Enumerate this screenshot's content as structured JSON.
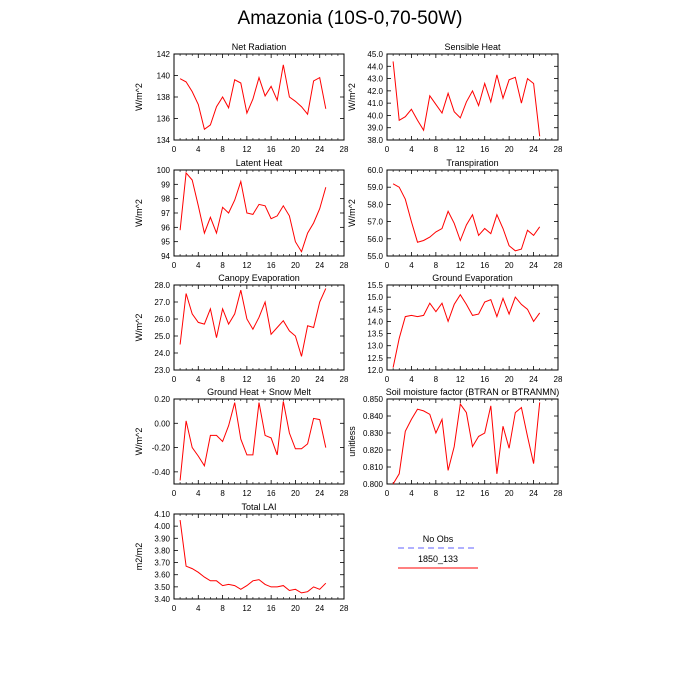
{
  "title": "Amazonia (10S-0,70-50W)",
  "legend": {
    "entries": [
      {
        "label": "No Obs",
        "color": "#8080ff",
        "dash": true
      },
      {
        "label": "1850_133",
        "color": "#ff0000",
        "dash": false
      }
    ]
  },
  "chart_data": [
    {
      "type": "line",
      "title": "Net Radiation",
      "ylabel": "W/m^2",
      "xlim": [
        0,
        28
      ],
      "xticks": [
        0,
        4,
        8,
        12,
        16,
        20,
        24,
        28
      ],
      "ylim": [
        134,
        142
      ],
      "yticks": [
        "134",
        "136",
        "138",
        "140",
        "142"
      ],
      "series": [
        {
          "color": "#ff0000",
          "x": [
            1,
            2,
            3,
            4,
            5,
            6,
            7,
            8,
            9,
            10,
            11,
            12,
            13,
            14,
            15,
            16,
            17,
            18,
            19,
            20,
            21,
            22,
            23,
            24,
            25
          ],
          "y": [
            139.7,
            139.4,
            138.5,
            137.3,
            135.0,
            135.4,
            137.1,
            138.0,
            137.0,
            139.6,
            139.3,
            136.5,
            137.8,
            139.8,
            138.1,
            139.0,
            137.7,
            141.0,
            138.0,
            137.6,
            137.1,
            136.4,
            139.5,
            139.8,
            136.9
          ]
        }
      ]
    },
    {
      "type": "line",
      "title": "Sensible Heat",
      "ylabel": "W/m^2",
      "xlim": [
        0,
        28
      ],
      "xticks": [
        0,
        4,
        8,
        12,
        16,
        20,
        24,
        28
      ],
      "ylim": [
        38.0,
        45.0
      ],
      "yticks": [
        "38.0",
        "39.0",
        "40.0",
        "41.0",
        "42.0",
        "43.0",
        "44.0",
        "45.0"
      ],
      "series": [
        {
          "color": "#ff0000",
          "x": [
            1,
            2,
            3,
            4,
            5,
            6,
            7,
            8,
            9,
            10,
            11,
            12,
            13,
            14,
            15,
            16,
            17,
            18,
            19,
            20,
            21,
            22,
            23,
            24,
            25
          ],
          "y": [
            44.4,
            39.6,
            39.9,
            40.5,
            39.6,
            38.8,
            41.6,
            40.9,
            40.2,
            41.8,
            40.3,
            39.8,
            41.1,
            42.0,
            40.8,
            42.6,
            41.1,
            43.3,
            41.4,
            42.9,
            43.1,
            41.0,
            43.0,
            42.6,
            38.3
          ]
        }
      ]
    },
    {
      "type": "line",
      "title": "Latent Heat",
      "ylabel": "W/m^2",
      "xlim": [
        0,
        28
      ],
      "xticks": [
        0,
        4,
        8,
        12,
        16,
        20,
        24,
        28
      ],
      "ylim": [
        94,
        100
      ],
      "yticks": [
        "94",
        "95",
        "96",
        "97",
        "98",
        "99",
        "100"
      ],
      "series": [
        {
          "color": "#ff0000",
          "x": [
            1,
            2,
            3,
            4,
            5,
            6,
            7,
            8,
            9,
            10,
            11,
            12,
            13,
            14,
            15,
            16,
            17,
            18,
            19,
            20,
            21,
            22,
            23,
            24,
            25
          ],
          "y": [
            95.8,
            99.8,
            99.3,
            97.5,
            95.6,
            96.7,
            95.6,
            97.4,
            97.0,
            97.9,
            99.2,
            97.0,
            96.9,
            97.6,
            97.5,
            96.6,
            96.8,
            97.5,
            96.8,
            95.0,
            94.3,
            95.6,
            96.3,
            97.3,
            98.8
          ]
        }
      ]
    },
    {
      "type": "line",
      "title": "Transpiration",
      "ylabel": "W/m^2",
      "xlim": [
        0,
        28
      ],
      "xticks": [
        0,
        4,
        8,
        12,
        16,
        20,
        24,
        28
      ],
      "ylim": [
        55.0,
        60.0
      ],
      "yticks": [
        "55.0",
        "56.0",
        "57.0",
        "58.0",
        "59.0",
        "60.0"
      ],
      "series": [
        {
          "color": "#ff0000",
          "x": [
            1,
            2,
            3,
            4,
            5,
            6,
            7,
            8,
            9,
            10,
            11,
            12,
            13,
            14,
            15,
            16,
            17,
            18,
            19,
            20,
            21,
            22,
            23,
            24,
            25
          ],
          "y": [
            59.2,
            59.0,
            58.3,
            57.0,
            55.8,
            55.9,
            56.1,
            56.4,
            56.6,
            57.6,
            56.9,
            55.9,
            56.8,
            57.4,
            56.2,
            56.6,
            56.3,
            57.4,
            56.6,
            55.6,
            55.3,
            55.4,
            56.5,
            56.2,
            56.7
          ]
        }
      ]
    },
    {
      "type": "line",
      "title": "Canopy Evaporation",
      "ylabel": "W/m^2",
      "xlim": [
        0,
        28
      ],
      "xticks": [
        0,
        4,
        8,
        12,
        16,
        20,
        24,
        28
      ],
      "ylim": [
        23.0,
        28.0
      ],
      "yticks": [
        "23.0",
        "24.0",
        "25.0",
        "26.0",
        "27.0",
        "28.0"
      ],
      "series": [
        {
          "color": "#ff0000",
          "x": [
            1,
            2,
            3,
            4,
            5,
            6,
            7,
            8,
            9,
            10,
            11,
            12,
            13,
            14,
            15,
            16,
            17,
            18,
            19,
            20,
            21,
            22,
            23,
            24,
            25
          ],
          "y": [
            24.5,
            27.5,
            26.3,
            25.8,
            25.7,
            26.6,
            24.9,
            26.6,
            25.7,
            26.3,
            27.7,
            26.0,
            25.4,
            26.1,
            27.0,
            25.1,
            25.5,
            25.9,
            25.3,
            25.0,
            23.8,
            25.6,
            25.5,
            27.0,
            27.8
          ]
        }
      ]
    },
    {
      "type": "line",
      "title": "Ground Evaporation",
      "ylabel": "",
      "xlim": [
        0,
        28
      ],
      "xticks": [
        0,
        4,
        8,
        12,
        16,
        20,
        24,
        28
      ],
      "ylim": [
        12.0,
        15.5
      ],
      "yticks": [
        "12.0",
        "12.5",
        "13.0",
        "13.5",
        "14.0",
        "14.5",
        "15.0",
        "15.5"
      ],
      "series": [
        {
          "color": "#ff0000",
          "x": [
            1,
            2,
            3,
            4,
            5,
            6,
            7,
            8,
            9,
            10,
            11,
            12,
            13,
            14,
            15,
            16,
            17,
            18,
            19,
            20,
            21,
            22,
            23,
            24,
            25
          ],
          "y": [
            12.1,
            13.3,
            14.2,
            14.25,
            14.2,
            14.25,
            14.75,
            14.4,
            14.75,
            14.0,
            14.7,
            15.1,
            14.7,
            14.25,
            14.3,
            14.8,
            14.9,
            14.2,
            14.95,
            14.3,
            15.0,
            14.7,
            14.5,
            14.0,
            14.35
          ]
        }
      ]
    },
    {
      "type": "line",
      "title": "Ground Heat + Snow Melt",
      "ylabel": "W/m^2",
      "xlim": [
        0,
        28
      ],
      "xticks": [
        0,
        4,
        8,
        12,
        16,
        20,
        24,
        28
      ],
      "ylim": [
        -0.5,
        0.2
      ],
      "yticks": [
        "-0.40",
        "-0.20",
        "0.00",
        "0.20"
      ],
      "yticks_at": [
        -0.4,
        -0.2,
        0.0,
        0.2
      ],
      "series": [
        {
          "color": "#ff0000",
          "x": [
            1,
            2,
            3,
            4,
            5,
            6,
            7,
            8,
            9,
            10,
            11,
            12,
            13,
            14,
            15,
            16,
            17,
            18,
            19,
            20,
            21,
            22,
            23,
            24,
            25
          ],
          "y": [
            -0.47,
            0.02,
            -0.2,
            -0.27,
            -0.35,
            -0.1,
            -0.1,
            -0.15,
            -0.02,
            0.17,
            -0.13,
            -0.26,
            -0.26,
            0.17,
            -0.1,
            -0.12,
            -0.26,
            0.18,
            -0.08,
            -0.21,
            -0.21,
            -0.17,
            0.04,
            0.03,
            -0.2
          ]
        }
      ]
    },
    {
      "type": "line",
      "title": "Soil moisture factor (BTRAN or BTRANMN)",
      "ylabel": "unitless",
      "xlim": [
        0,
        28
      ],
      "xticks": [
        0,
        4,
        8,
        12,
        16,
        20,
        24,
        28
      ],
      "ylim": [
        0.8,
        0.85
      ],
      "yticks": [
        "0.800",
        "0.810",
        "0.820",
        "0.830",
        "0.840",
        "0.850"
      ],
      "yticks_at": [
        0.8,
        0.81,
        0.82,
        0.83,
        0.84,
        0.85
      ],
      "series": [
        {
          "color": "#ff0000",
          "x": [
            1,
            2,
            3,
            4,
            5,
            6,
            7,
            8,
            9,
            10,
            11,
            12,
            13,
            14,
            15,
            16,
            17,
            18,
            19,
            20,
            21,
            22,
            23,
            24,
            25
          ],
          "y": [
            0.8,
            0.806,
            0.831,
            0.838,
            0.844,
            0.843,
            0.841,
            0.83,
            0.838,
            0.808,
            0.822,
            0.847,
            0.842,
            0.822,
            0.828,
            0.83,
            0.846,
            0.806,
            0.834,
            0.821,
            0.842,
            0.845,
            0.828,
            0.812,
            0.848
          ]
        }
      ]
    },
    {
      "type": "line",
      "title": "Total LAI",
      "ylabel": "m2/m2",
      "xlim": [
        0,
        28
      ],
      "xticks": [
        0,
        4,
        8,
        12,
        16,
        20,
        24,
        28
      ],
      "ylim": [
        3.4,
        4.1
      ],
      "yticks": [
        "3.40",
        "3.50",
        "3.60",
        "3.70",
        "3.80",
        "3.90",
        "4.00",
        "4.10"
      ],
      "yticks_at": [
        3.4,
        3.5,
        3.6,
        3.7,
        3.8,
        3.9,
        4.0,
        4.1
      ],
      "series": [
        {
          "color": "#ff0000",
          "x": [
            1,
            2,
            3,
            4,
            5,
            6,
            7,
            8,
            9,
            10,
            11,
            12,
            13,
            14,
            15,
            16,
            17,
            18,
            19,
            20,
            21,
            22,
            23,
            24,
            25
          ],
          "y": [
            4.05,
            3.67,
            3.65,
            3.62,
            3.58,
            3.55,
            3.55,
            3.51,
            3.52,
            3.51,
            3.48,
            3.51,
            3.55,
            3.56,
            3.52,
            3.5,
            3.5,
            3.51,
            3.47,
            3.48,
            3.45,
            3.46,
            3.5,
            3.48,
            3.53
          ]
        }
      ]
    }
  ]
}
